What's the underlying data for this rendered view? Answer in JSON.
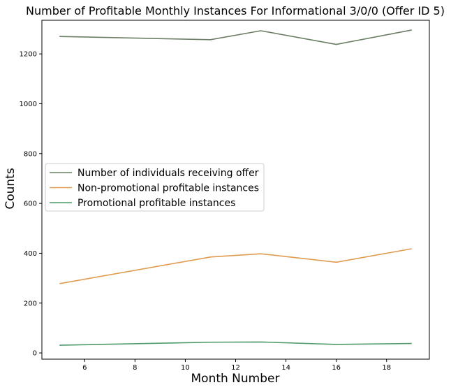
{
  "chart_data": {
    "type": "line",
    "title": "Number of Profitable Monthly Instances For Informational 3/0/0 (Offer ID 5)",
    "xlabel": "Month Number",
    "ylabel": "Counts",
    "x": [
      5,
      11,
      13,
      16,
      19
    ],
    "xlim": [
      4.3,
      19.7
    ],
    "ylim": [
      -25,
      1335
    ],
    "xticks": [
      6,
      8,
      10,
      12,
      14,
      16,
      18
    ],
    "yticks": [
      0,
      200,
      400,
      600,
      800,
      1000,
      1200
    ],
    "grid": false,
    "legend_position": "center-left",
    "series": [
      {
        "name": "Number of individuals receiving offer",
        "color": "#6b7f66",
        "values": [
          1270,
          1257,
          1293,
          1238,
          1296
        ]
      },
      {
        "name": "Non-promotional profitable instances",
        "color": "#e09b50",
        "values": [
          278,
          385,
          398,
          364,
          418
        ]
      },
      {
        "name": "Promotional profitable instances",
        "color": "#4f9a6a",
        "values": [
          31,
          43,
          44,
          34,
          38
        ]
      }
    ]
  }
}
